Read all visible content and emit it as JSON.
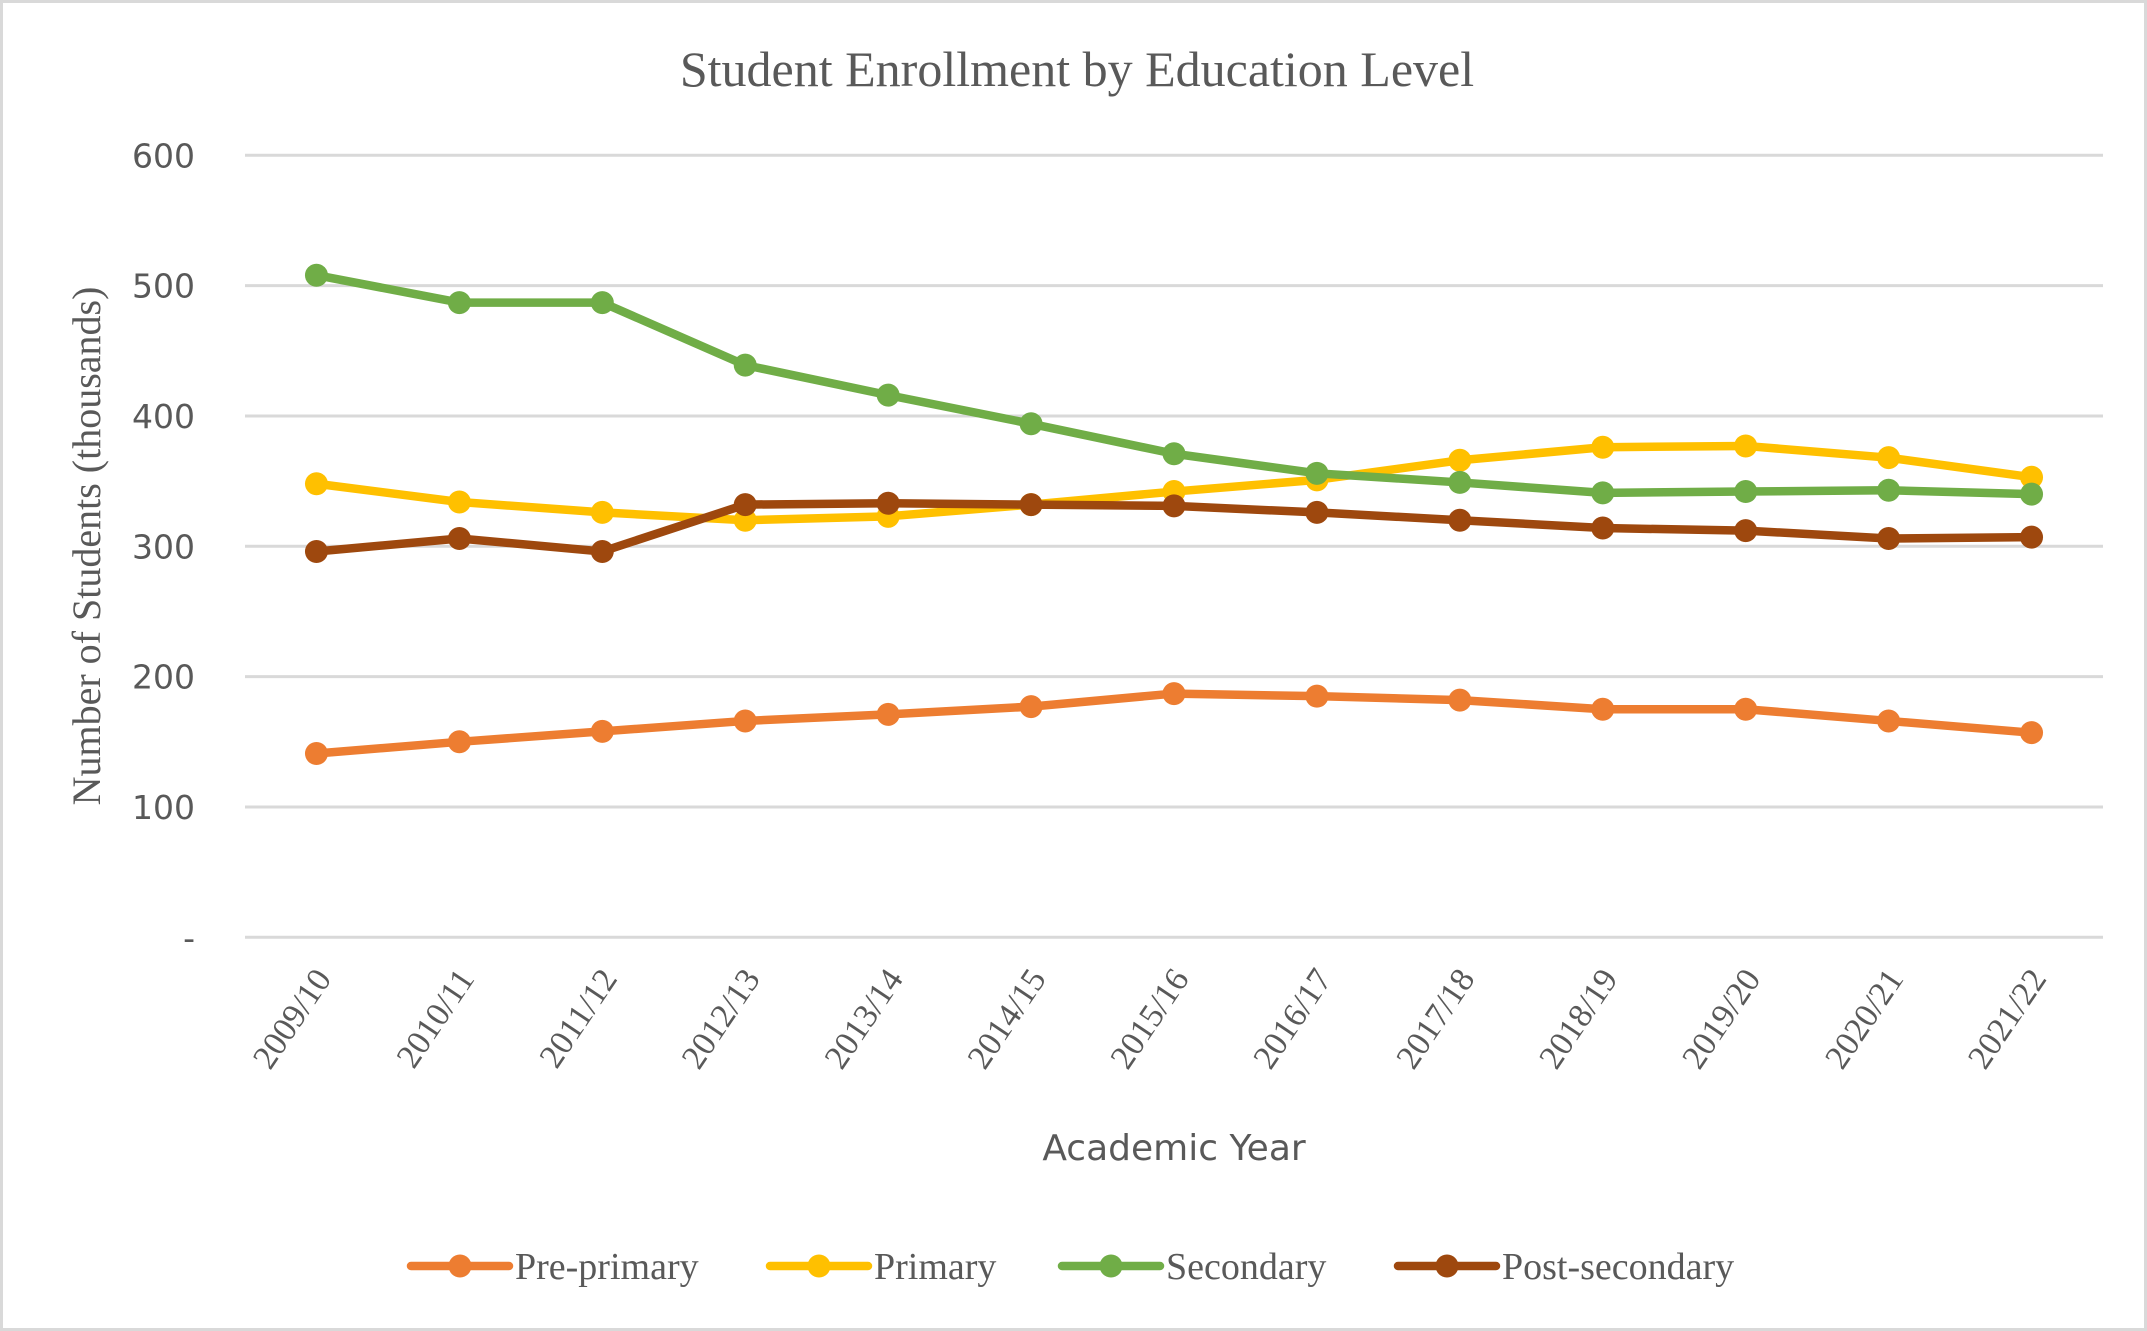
{
  "chart_data": {
    "type": "line",
    "title": "Student Enrollment by Education Level",
    "xlabel": "Academic Year",
    "ylabel": "Number of Students (thousands)",
    "ylim": [
      0,
      600
    ],
    "yticks": [
      0,
      100,
      200,
      300,
      400,
      500,
      600
    ],
    "ytick_labels": [
      "-",
      "100",
      "200",
      "300",
      "400",
      "500",
      "600"
    ],
    "grid": true,
    "legend_position": "bottom",
    "categories": [
      "2009/10",
      "2010/11",
      "2011/12",
      "2012/13",
      "2013/14",
      "2014/15",
      "2015/16",
      "2016/17",
      "2017/18",
      "2018/19",
      "2019/20",
      "2020/21",
      "2021/22"
    ],
    "series": [
      {
        "name": "Pre-primary",
        "color": "#ED7D31",
        "values": [
          141,
          150,
          158,
          166,
          171,
          177,
          187,
          185,
          182,
          175,
          175,
          166,
          157
        ]
      },
      {
        "name": "Primary",
        "color": "#FFC000",
        "values": [
          348,
          334,
          326,
          320,
          323,
          332,
          342,
          351,
          366,
          376,
          377,
          368,
          353
        ]
      },
      {
        "name": "Secondary",
        "color": "#70AD47",
        "values": [
          508,
          487,
          487,
          439,
          416,
          394,
          371,
          356,
          349,
          341,
          342,
          343,
          340
        ]
      },
      {
        "name": "Post-secondary",
        "color": "#9E480E",
        "values": [
          296,
          306,
          296,
          332,
          333,
          332,
          331,
          326,
          320,
          314,
          312,
          306,
          307
        ]
      }
    ]
  }
}
